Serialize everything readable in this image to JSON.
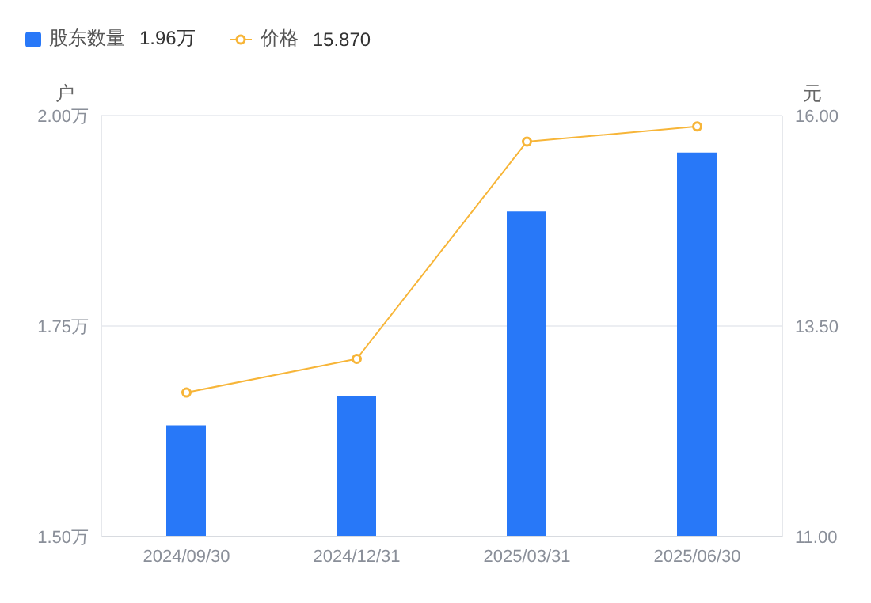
{
  "chart_data": {
    "type": "bar",
    "categories": [
      "2024/09/30",
      "2024/12/31",
      "2025/03/31",
      "2025/06/30"
    ],
    "series": [
      {
        "name": "股东数量",
        "color": "#2878f8",
        "values": [
          1.632,
          1.667,
          1.886,
          1.956
        ]
      },
      {
        "name": "价格",
        "type": "line",
        "axis": "y2",
        "color": "#f7b538",
        "values": [
          12.71,
          13.11,
          15.69,
          15.87
        ]
      }
    ],
    "ylabel": "户",
    "y2label": "元",
    "ylim": [
      1.5,
      2.0
    ],
    "yticks": [
      {
        "value": 1.5,
        "label": "1.50万"
      },
      {
        "value": 1.75,
        "label": "1.75万"
      },
      {
        "value": 2.0,
        "label": "2.00万"
      }
    ],
    "y2lim": [
      11,
      16
    ],
    "y2ticks": [
      {
        "value": 11,
        "label": "11.00"
      },
      {
        "value": 13.5,
        "label": "13.50"
      },
      {
        "value": 16,
        "label": "16.00"
      }
    ],
    "annotations": [
      "1.96万",
      "15.870"
    ],
    "grid": "y",
    "legend": "top left",
    "marker": "circle"
  }
}
